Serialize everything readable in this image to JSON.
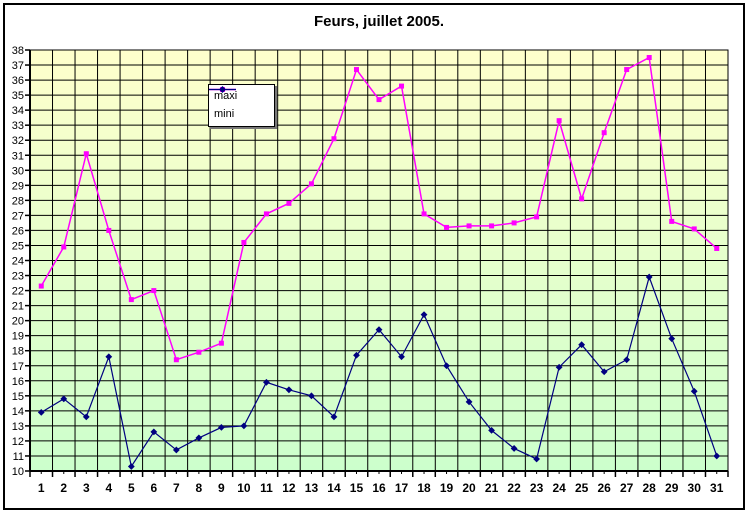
{
  "chart_data": {
    "type": "line",
    "title": "Feurs, juillet 2005.",
    "categories": [
      "1",
      "2",
      "3",
      "4",
      "5",
      "6",
      "7",
      "8",
      "9",
      "10",
      "11",
      "12",
      "13",
      "14",
      "15",
      "16",
      "17",
      "18",
      "19",
      "20",
      "21",
      "22",
      "23",
      "24",
      "25",
      "26",
      "27",
      "28",
      "29",
      "30",
      "31"
    ],
    "series": [
      {
        "name": "maxi",
        "color": "#FF00FF",
        "marker": "square",
        "values": [
          22.3,
          24.9,
          31.1,
          26.0,
          21.4,
          22.0,
          17.4,
          17.9,
          18.5,
          25.2,
          27.1,
          27.8,
          29.1,
          32.1,
          36.7,
          34.7,
          35.6,
          27.1,
          26.2,
          26.3,
          26.3,
          26.5,
          26.9,
          33.3,
          28.1,
          32.5,
          36.7,
          37.5,
          26.6,
          26.1,
          24.8
        ]
      },
      {
        "name": "mini",
        "color": "#000080",
        "marker": "diamond",
        "values": [
          13.9,
          14.8,
          13.6,
          17.6,
          10.3,
          12.6,
          11.4,
          12.2,
          12.9,
          13.0,
          15.9,
          15.4,
          15.0,
          13.6,
          17.7,
          19.4,
          17.6,
          20.4,
          17.0,
          14.6,
          12.7,
          11.5,
          10.8,
          16.9,
          18.4,
          16.6,
          17.4,
          22.9,
          18.8,
          15.3,
          11.0
        ]
      }
    ],
    "xlabel": "",
    "ylabel": "",
    "ylim": [
      10,
      38
    ],
    "y_ticks": [
      10,
      11,
      12,
      13,
      14,
      15,
      16,
      17,
      18,
      19,
      20,
      21,
      22,
      23,
      24,
      25,
      26,
      27,
      28,
      29,
      30,
      31,
      32,
      33,
      34,
      35,
      36,
      37,
      38
    ],
    "grid": "on",
    "legend_position": "inside-top-left",
    "plot_bg_gradient_top": "#FFFFCC",
    "plot_bg_gradient_bottom": "#CCFFCC",
    "grid_color": "#000000",
    "axis_color": "#000000",
    "text_color": "#000000"
  }
}
